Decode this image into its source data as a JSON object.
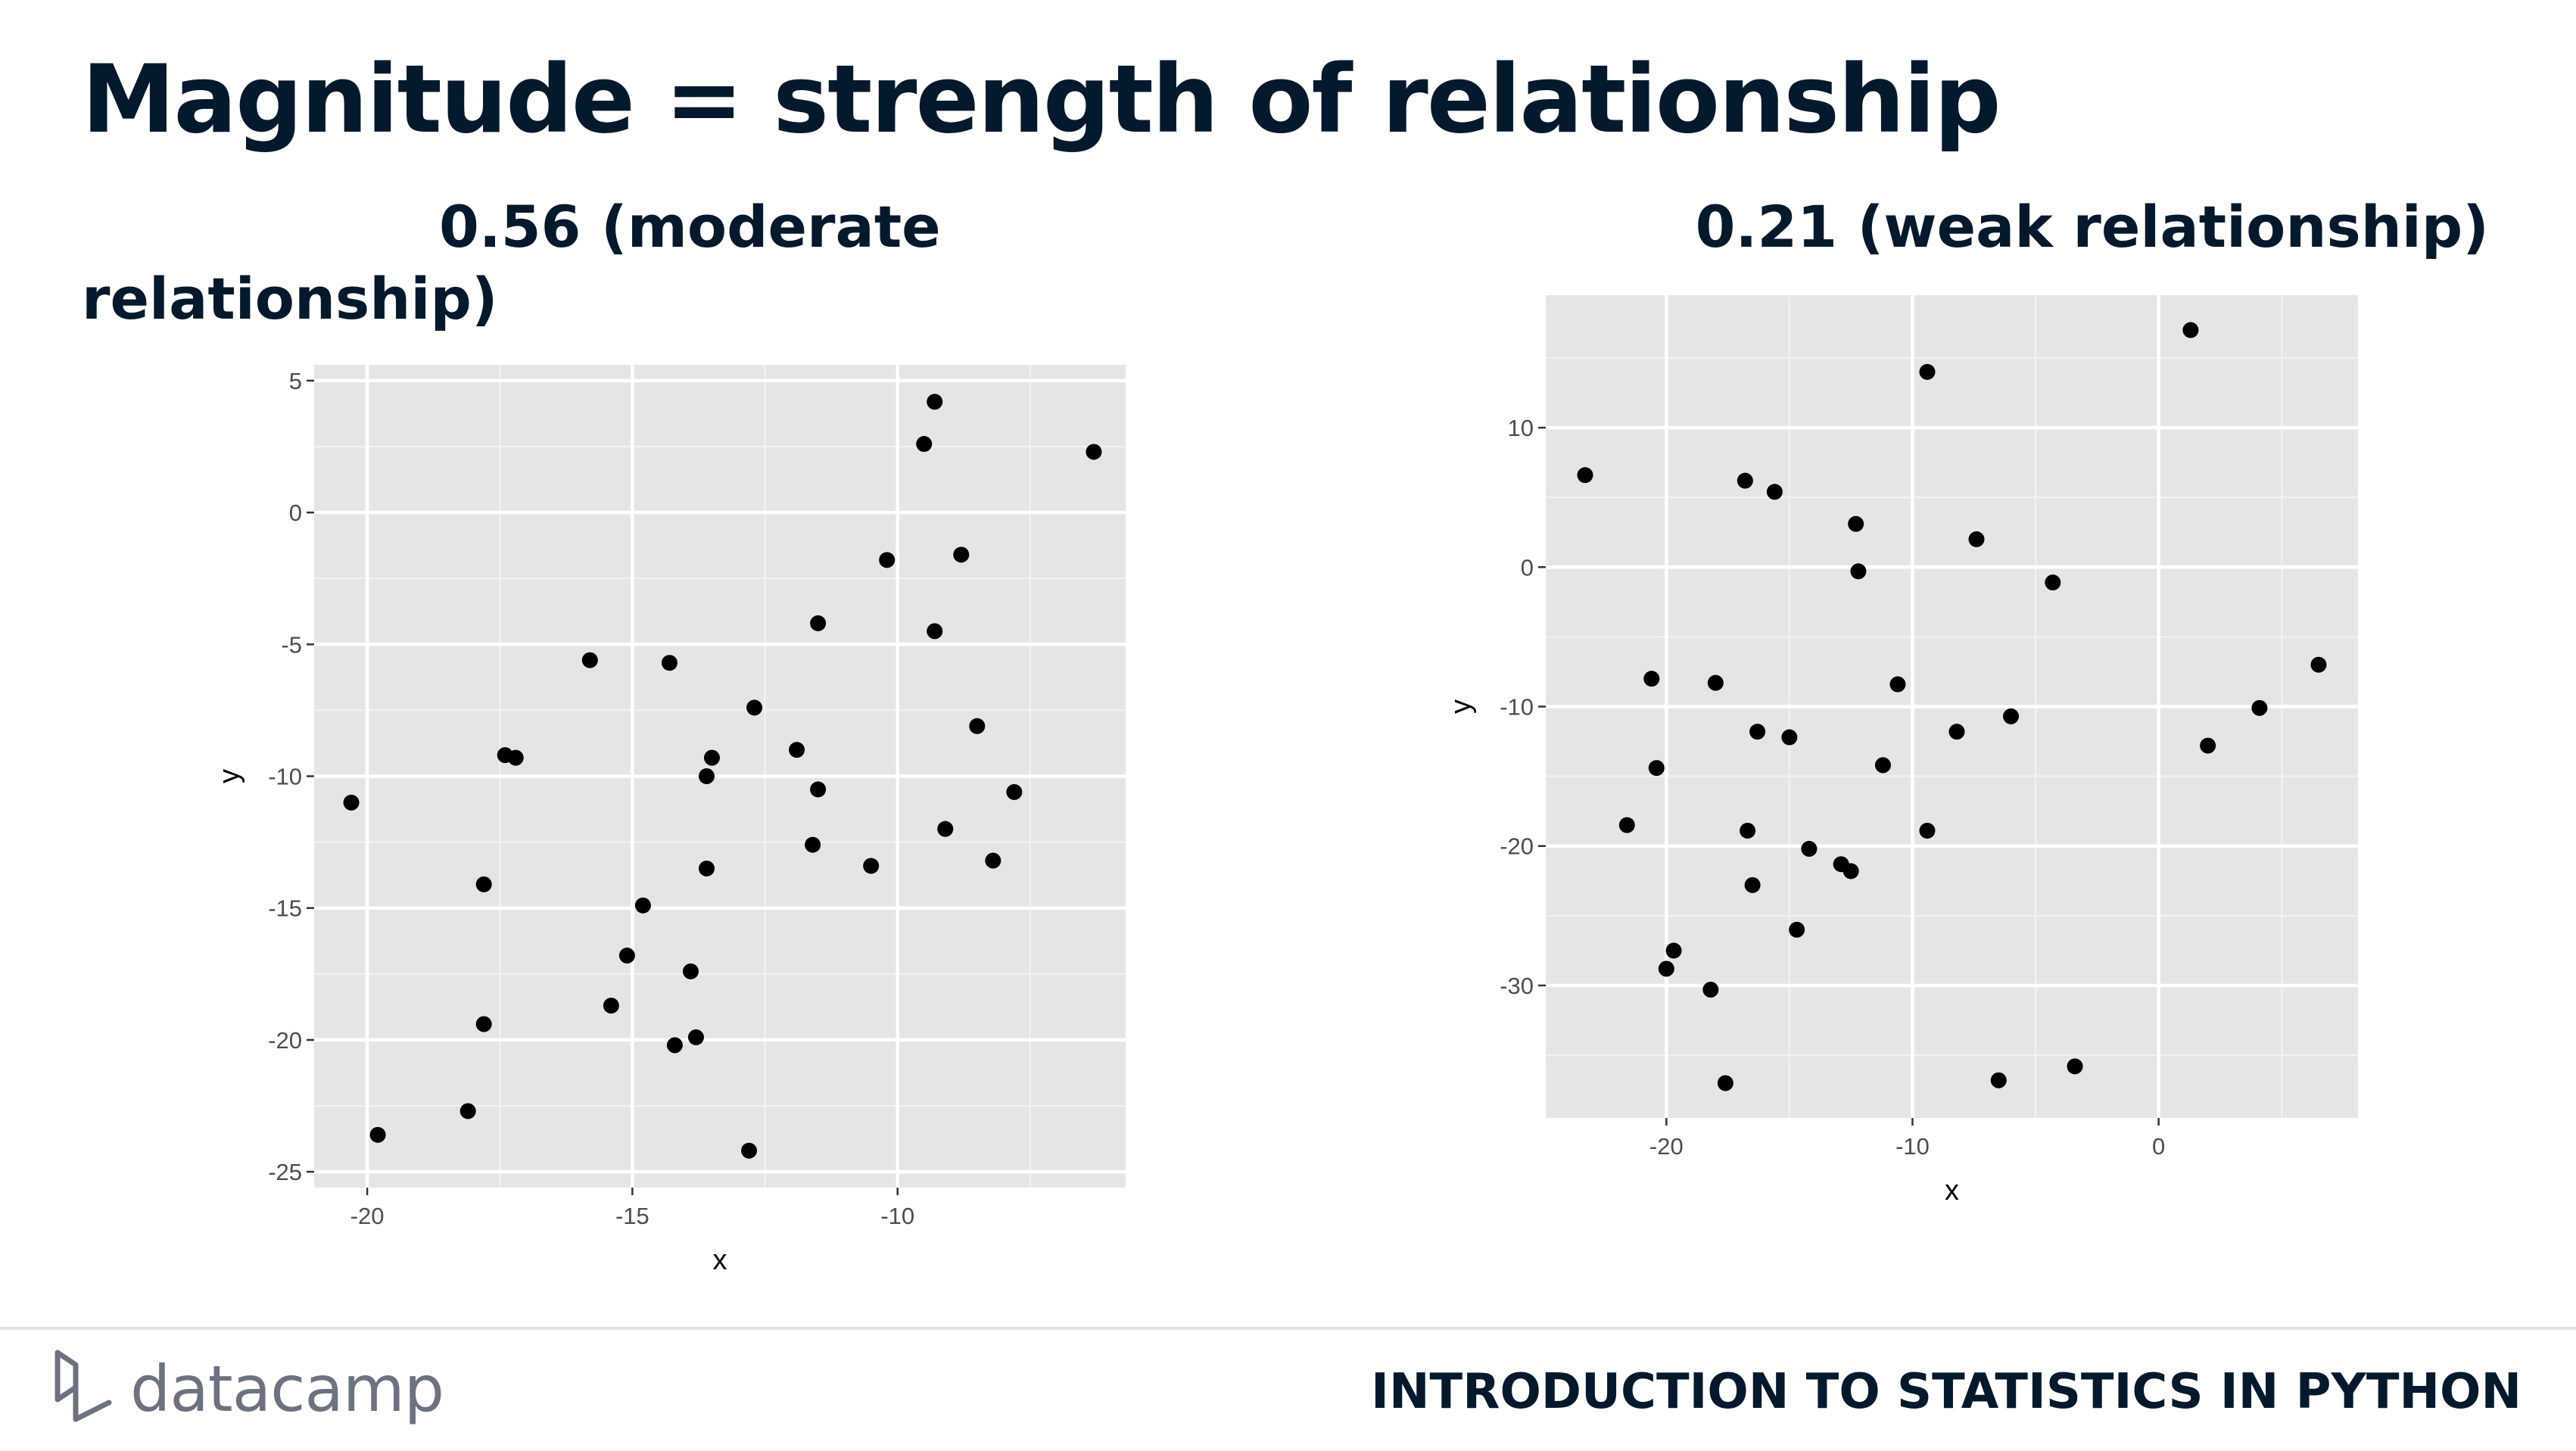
{
  "slide": {
    "title": "Magnitude = strength of relationship",
    "footer_course": "INTRODUCTION TO STATISTICS IN PYTHON",
    "logo_text": "datacamp",
    "logo_icon": "datacamp-logo-icon"
  },
  "titles": {
    "left_line1": "0.56 (moderate",
    "left_line2": "relationship)",
    "right": "0.21 (weak relationship)"
  },
  "colors": {
    "title": "#05192d",
    "panel": "#e5e5e5",
    "points": "#000000",
    "logo": "#6c7280"
  },
  "chart_data": [
    {
      "type": "scatter",
      "title": "0.56 (moderate relationship)",
      "xlabel": "x",
      "ylabel": "y",
      "xlim": [
        -21,
        -5.7
      ],
      "ylim": [
        -25.6,
        5.6
      ],
      "xticks": [
        -20,
        -15,
        -10
      ],
      "xtick_labels": [
        "-20",
        "-15",
        "-10"
      ],
      "yticks": [
        5,
        0,
        -5,
        -10,
        -15,
        -20,
        -25
      ],
      "ytick_labels": [
        "5",
        "0",
        "-5",
        "-10",
        "-15",
        "-20",
        "-25"
      ],
      "grid": true,
      "points": [
        {
          "x": -20.3,
          "y": -11.0
        },
        {
          "x": -19.8,
          "y": -23.6
        },
        {
          "x": -18.1,
          "y": -22.7
        },
        {
          "x": -17.8,
          "y": -14.1
        },
        {
          "x": -17.8,
          "y": -19.4
        },
        {
          "x": -17.4,
          "y": -9.2
        },
        {
          "x": -17.2,
          "y": -9.3
        },
        {
          "x": -15.8,
          "y": -5.6
        },
        {
          "x": -15.4,
          "y": -18.7
        },
        {
          "x": -15.1,
          "y": -16.8
        },
        {
          "x": -14.8,
          "y": -14.9
        },
        {
          "x": -14.3,
          "y": -5.7
        },
        {
          "x": -14.2,
          "y": -20.2
        },
        {
          "x": -13.9,
          "y": -17.4
        },
        {
          "x": -13.8,
          "y": -19.9
        },
        {
          "x": -13.6,
          "y": -13.5
        },
        {
          "x": -13.6,
          "y": -10.0
        },
        {
          "x": -13.5,
          "y": -9.3
        },
        {
          "x": -12.8,
          "y": -24.2
        },
        {
          "x": -12.7,
          "y": -7.4
        },
        {
          "x": -11.9,
          "y": -9.0
        },
        {
          "x": -11.6,
          "y": -12.6
        },
        {
          "x": -11.5,
          "y": -10.5
        },
        {
          "x": -11.5,
          "y": -4.2
        },
        {
          "x": -10.5,
          "y": -13.4
        },
        {
          "x": -10.2,
          "y": -1.8
        },
        {
          "x": -9.5,
          "y": 2.6
        },
        {
          "x": -9.3,
          "y": 4.2
        },
        {
          "x": -9.3,
          "y": -4.5
        },
        {
          "x": -9.1,
          "y": -12.0
        },
        {
          "x": -8.8,
          "y": -1.6
        },
        {
          "x": -8.5,
          "y": -8.1
        },
        {
          "x": -8.2,
          "y": -13.2
        },
        {
          "x": -7.8,
          "y": -10.6
        },
        {
          "x": -6.3,
          "y": 2.3
        }
      ]
    },
    {
      "type": "scatter",
      "title": "0.21 (weak relationship)",
      "xlabel": "x",
      "ylabel": "y",
      "xlim": [
        -24.9,
        8.1
      ],
      "ylim": [
        -39.5,
        19.5
      ],
      "xticks": [
        -20,
        -10,
        0
      ],
      "xtick_labels": [
        "-20",
        "-10",
        "0"
      ],
      "yticks": [
        10,
        0,
        -10,
        -20,
        -30
      ],
      "ytick_labels": [
        "10",
        "0",
        "-10",
        "-20",
        "-30"
      ],
      "grid": true,
      "points": [
        {
          "x": -23.3,
          "y": 6.6
        },
        {
          "x": -21.6,
          "y": -18.5
        },
        {
          "x": -20.6,
          "y": -8.0
        },
        {
          "x": -20.4,
          "y": -14.4
        },
        {
          "x": -20.0,
          "y": -28.8
        },
        {
          "x": -19.7,
          "y": -27.5
        },
        {
          "x": -18.2,
          "y": -30.3
        },
        {
          "x": -18.0,
          "y": -8.3
        },
        {
          "x": -17.6,
          "y": -37.0
        },
        {
          "x": -16.8,
          "y": 6.2
        },
        {
          "x": -16.7,
          "y": -18.9
        },
        {
          "x": -16.5,
          "y": -22.8
        },
        {
          "x": -16.3,
          "y": -11.8
        },
        {
          "x": -15.6,
          "y": 5.4
        },
        {
          "x": -15.0,
          "y": -12.2
        },
        {
          "x": -14.7,
          "y": -26.0
        },
        {
          "x": -14.2,
          "y": -20.2
        },
        {
          "x": -12.9,
          "y": -21.3
        },
        {
          "x": -12.5,
          "y": -21.8
        },
        {
          "x": -12.3,
          "y": 3.1
        },
        {
          "x": -12.2,
          "y": -0.3
        },
        {
          "x": -11.2,
          "y": -14.2
        },
        {
          "x": -10.6,
          "y": -8.4
        },
        {
          "x": -9.4,
          "y": 14.0
        },
        {
          "x": -9.4,
          "y": -18.9
        },
        {
          "x": -8.2,
          "y": -11.8
        },
        {
          "x": -7.4,
          "y": 2.0
        },
        {
          "x": -6.5,
          "y": -36.8
        },
        {
          "x": -6.0,
          "y": -10.7
        },
        {
          "x": -4.3,
          "y": -1.1
        },
        {
          "x": -3.4,
          "y": -35.8
        },
        {
          "x": 1.3,
          "y": 17.0
        },
        {
          "x": 2.0,
          "y": -12.8
        },
        {
          "x": 4.1,
          "y": -10.1
        },
        {
          "x": 6.5,
          "y": -7.0
        }
      ]
    }
  ]
}
